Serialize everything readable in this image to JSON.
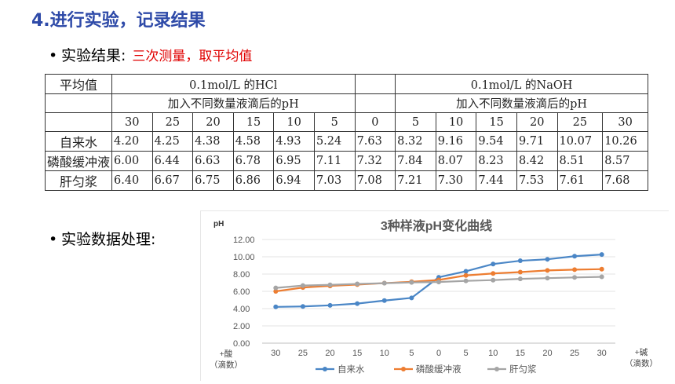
{
  "slide": {
    "heading": "4.进行实验，记录结果",
    "bullet1_label": "实验结果:",
    "bullet1_note": "三次测量，取平均值",
    "bullet2_label": "实验数据处理:"
  },
  "table": {
    "corner": "平均值",
    "hcl_title": "0.1mol/L 的HCl",
    "naoh_title": "0.1mol/L 的NaOH",
    "hcl_sub": "加入不同数量液滴后的pH",
    "naoh_sub": "加入不同数量液滴后的pH",
    "drops": [
      "30",
      "25",
      "20",
      "15",
      "10",
      "5",
      "0",
      "5",
      "10",
      "15",
      "20",
      "25",
      "30"
    ],
    "rows": [
      {
        "name": "自来水",
        "values": [
          "4.20",
          "4.25",
          "4.38",
          "4.58",
          "4.93",
          "5.24",
          "7.63",
          "8.32",
          "9.16",
          "9.54",
          "9.71",
          "10.07",
          "10.26"
        ]
      },
      {
        "name": "磷酸缓冲液",
        "values": [
          "6.00",
          "6.44",
          "6.63",
          "6.78",
          "6.95",
          "7.11",
          "7.32",
          "7.84",
          "8.07",
          "8.23",
          "8.42",
          "8.51",
          "8.57"
        ]
      },
      {
        "name": "肝匀浆",
        "values": [
          "6.40",
          "6.67",
          "6.75",
          "6.86",
          "6.94",
          "7.03",
          "7.08",
          "7.21",
          "7.30",
          "7.44",
          "7.53",
          "7.61",
          "7.68"
        ]
      }
    ]
  },
  "chart_data": {
    "type": "line",
    "title": "3种样液pH变化曲线",
    "ylabel": "pH",
    "x_left_label_line1": "+酸",
    "x_left_label_line2": "（滴数）",
    "x_right_label_line1": "+碱",
    "x_right_label_line2": "（滴数）",
    "categories": [
      "30",
      "25",
      "20",
      "15",
      "10",
      "5",
      "0",
      "5",
      "10",
      "15",
      "20",
      "25",
      "30"
    ],
    "ylim": [
      0,
      12
    ],
    "yticks": [
      "0.00",
      "2.00",
      "4.00",
      "6.00",
      "8.00",
      "10.00",
      "12.00"
    ],
    "grid": true,
    "legend_position": "bottom",
    "series": [
      {
        "name": "自来水",
        "color": "#4a86c6",
        "values": [
          4.2,
          4.25,
          4.38,
          4.58,
          4.93,
          5.24,
          7.63,
          8.32,
          9.16,
          9.54,
          9.71,
          10.07,
          10.26
        ]
      },
      {
        "name": "磷酸缓冲液",
        "color": "#ed7d31",
        "values": [
          6.0,
          6.44,
          6.63,
          6.78,
          6.95,
          7.11,
          7.32,
          7.84,
          8.07,
          8.23,
          8.42,
          8.51,
          8.57
        ]
      },
      {
        "name": "肝匀浆",
        "color": "#a5a5a5",
        "values": [
          6.4,
          6.67,
          6.75,
          6.86,
          6.94,
          7.03,
          7.08,
          7.21,
          7.3,
          7.44,
          7.53,
          7.61,
          7.68
        ]
      }
    ]
  }
}
